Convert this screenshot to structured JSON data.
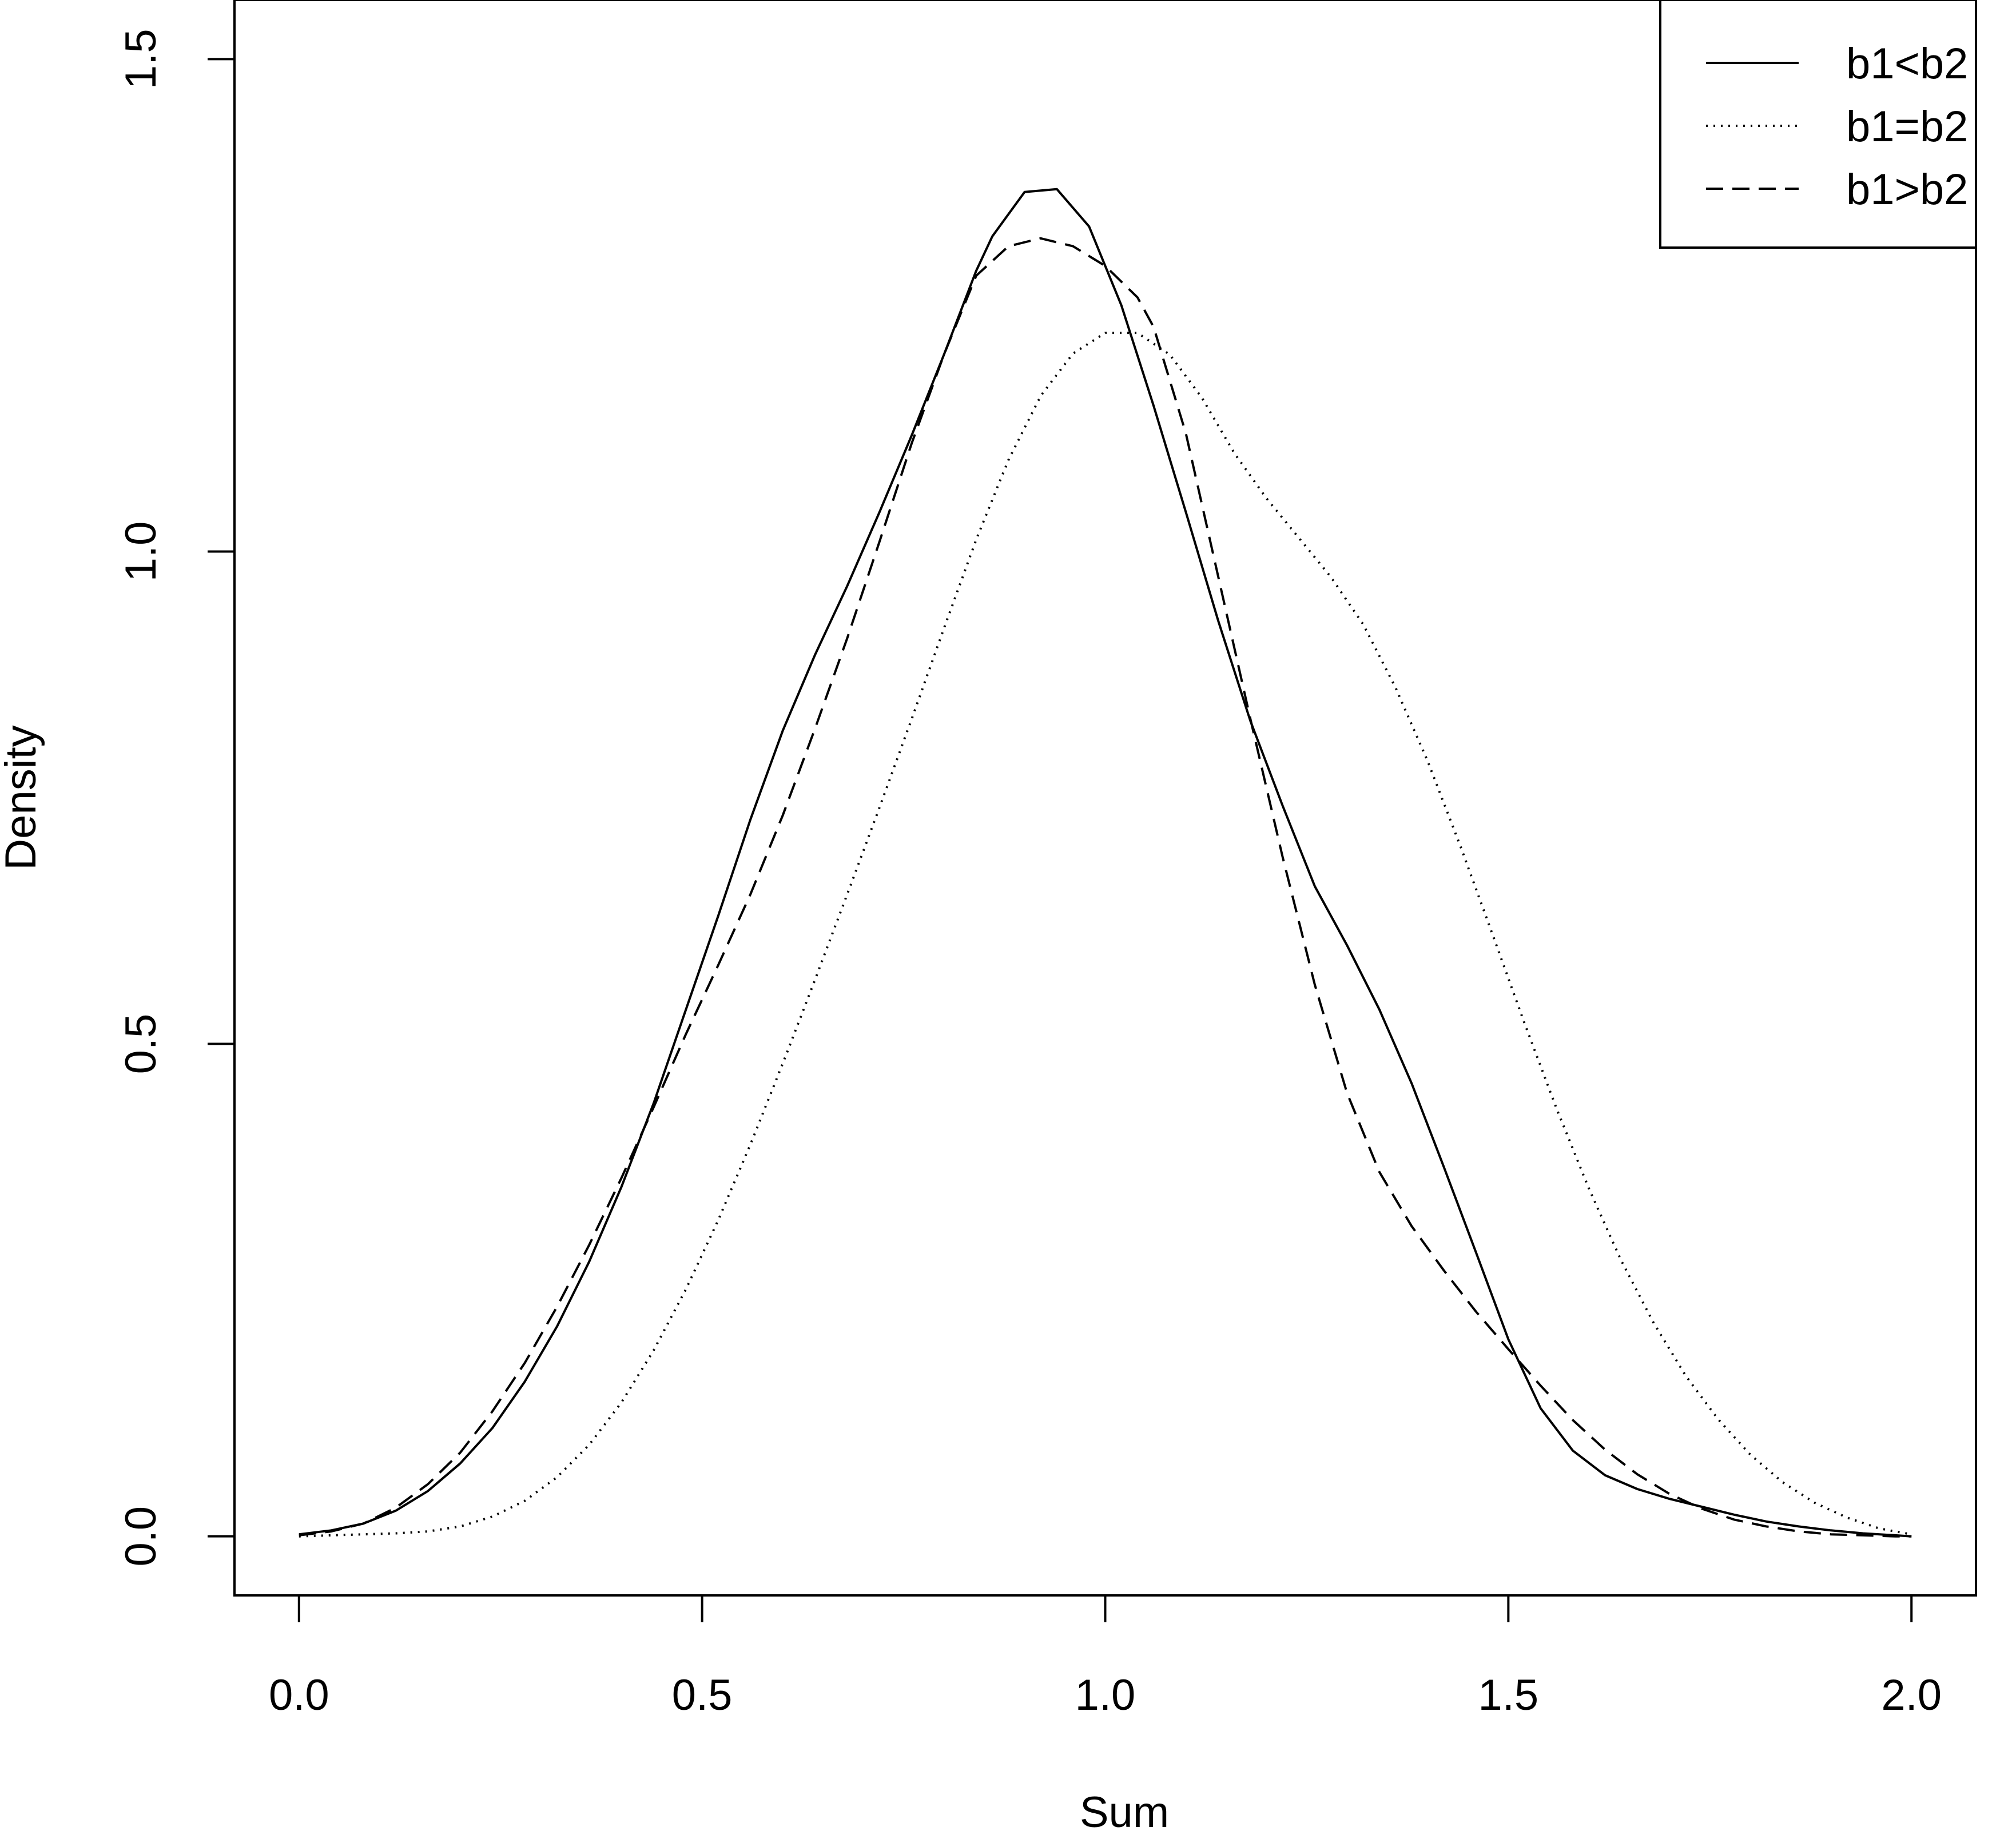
{
  "chart_data": {
    "type": "line",
    "title": "",
    "xlabel": "Sum",
    "ylabel": "Density",
    "xlim": [
      -0.08,
      2.08
    ],
    "ylim": [
      -0.06,
      1.56
    ],
    "xticks": [
      0.0,
      0.5,
      1.0,
      1.5,
      2.0
    ],
    "xtick_labels": [
      "0.0",
      "0.5",
      "1.0",
      "1.5",
      "2.0"
    ],
    "yticks": [
      0.0,
      0.5,
      1.0,
      1.5
    ],
    "ytick_labels": [
      "0.0",
      "0.5",
      "1.0",
      "1.5"
    ],
    "grid": false,
    "legend_position": "top-right",
    "series": [
      {
        "name": "b1<b2",
        "style": "solid",
        "x": [
          0.0,
          0.04,
          0.08,
          0.12,
          0.16,
          0.2,
          0.24,
          0.28,
          0.32,
          0.36,
          0.4,
          0.44,
          0.48,
          0.52,
          0.56,
          0.6,
          0.64,
          0.68,
          0.72,
          0.76,
          0.8,
          0.84,
          0.86,
          0.9,
          0.94,
          0.98,
          1.02,
          1.06,
          1.1,
          1.14,
          1.18,
          1.22,
          1.26,
          1.3,
          1.34,
          1.38,
          1.42,
          1.46,
          1.5,
          1.54,
          1.58,
          1.62,
          1.66,
          1.7,
          1.74,
          1.78,
          1.82,
          1.86,
          1.9,
          1.94,
          1.98,
          2.0
        ],
        "y": [
          0.002,
          0.006,
          0.013,
          0.026,
          0.046,
          0.074,
          0.11,
          0.157,
          0.213,
          0.279,
          0.355,
          0.44,
          0.535,
          0.63,
          0.728,
          0.818,
          0.895,
          0.965,
          1.04,
          1.118,
          1.2,
          1.285,
          1.32,
          1.365,
          1.368,
          1.33,
          1.25,
          1.148,
          1.04,
          0.93,
          0.828,
          0.742,
          0.66,
          0.6,
          0.535,
          0.46,
          0.375,
          0.288,
          0.2,
          0.13,
          0.087,
          0.062,
          0.048,
          0.038,
          0.03,
          0.022,
          0.015,
          0.01,
          0.006,
          0.003,
          0.001,
          0.0
        ]
      },
      {
        "name": "b1=b2",
        "style": "dotted",
        "x": [
          0.0,
          0.04,
          0.08,
          0.12,
          0.16,
          0.2,
          0.24,
          0.28,
          0.32,
          0.36,
          0.4,
          0.44,
          0.48,
          0.52,
          0.56,
          0.6,
          0.64,
          0.68,
          0.72,
          0.76,
          0.8,
          0.84,
          0.88,
          0.92,
          0.96,
          1.0,
          1.04,
          1.08,
          1.12,
          1.16,
          1.2,
          1.24,
          1.28,
          1.32,
          1.36,
          1.4,
          1.44,
          1.48,
          1.52,
          1.56,
          1.6,
          1.64,
          1.68,
          1.72,
          1.76,
          1.8,
          1.84,
          1.88,
          1.92,
          1.96,
          2.0
        ],
        "y": [
          0.0,
          0.001,
          0.002,
          0.003,
          0.005,
          0.01,
          0.02,
          0.036,
          0.06,
          0.093,
          0.136,
          0.189,
          0.251,
          0.321,
          0.398,
          0.48,
          0.565,
          0.652,
          0.74,
          0.83,
          0.922,
          1.012,
          1.093,
          1.158,
          1.201,
          1.222,
          1.222,
          1.2,
          1.156,
          1.1,
          1.054,
          1.014,
          0.974,
          0.926,
          0.862,
          0.787,
          0.702,
          0.612,
          0.521,
          0.434,
          0.353,
          0.28,
          0.217,
          0.163,
          0.119,
          0.083,
          0.055,
          0.034,
          0.019,
          0.008,
          0.002
        ]
      },
      {
        "name": "b1>b2",
        "style": "dashed",
        "x": [
          0.0,
          0.04,
          0.08,
          0.12,
          0.16,
          0.2,
          0.24,
          0.28,
          0.32,
          0.36,
          0.4,
          0.44,
          0.48,
          0.52,
          0.56,
          0.6,
          0.64,
          0.68,
          0.72,
          0.76,
          0.8,
          0.84,
          0.88,
          0.92,
          0.96,
          1.0,
          1.04,
          1.06,
          1.1,
          1.14,
          1.18,
          1.22,
          1.26,
          1.3,
          1.34,
          1.38,
          1.42,
          1.46,
          1.5,
          1.54,
          1.58,
          1.62,
          1.66,
          1.7,
          1.74,
          1.78,
          1.82,
          1.86,
          1.9,
          1.94,
          1.98,
          2.0
        ],
        "y": [
          0.001,
          0.005,
          0.013,
          0.029,
          0.053,
          0.085,
          0.127,
          0.176,
          0.233,
          0.296,
          0.364,
          0.436,
          0.51,
          0.58,
          0.652,
          0.732,
          0.82,
          0.912,
          1.01,
          1.11,
          1.2,
          1.28,
          1.31,
          1.318,
          1.31,
          1.29,
          1.258,
          1.228,
          1.12,
          0.975,
          0.83,
          0.69,
          0.56,
          0.45,
          0.37,
          0.315,
          0.27,
          0.228,
          0.19,
          0.153,
          0.118,
          0.088,
          0.063,
          0.043,
          0.028,
          0.017,
          0.01,
          0.005,
          0.002,
          0.001,
          0.0,
          0.0
        ]
      }
    ]
  }
}
